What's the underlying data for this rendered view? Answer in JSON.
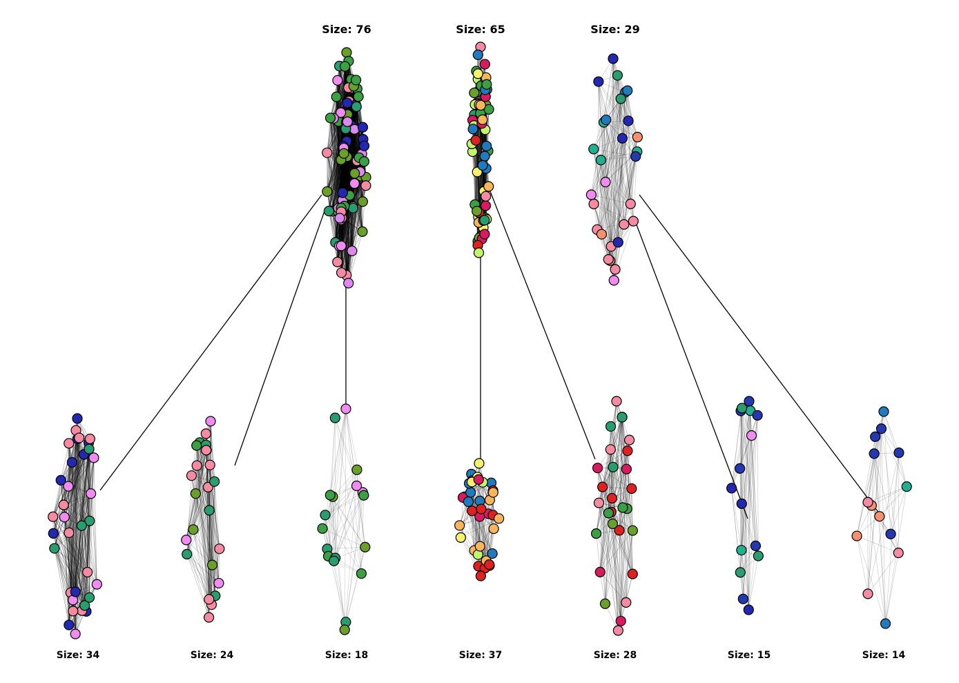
{
  "top_clusters": [
    {
      "id": "t1",
      "size_label": "Size: 76",
      "palette": [
        "#f08cf0",
        "#f58aa3",
        "#3aa043",
        "#2a9d70",
        "#6aa02a",
        "#dd88ee",
        "#2427b0"
      ]
    },
    {
      "id": "t2",
      "size_label": "Size: 65",
      "palette": [
        "#dd2222",
        "#1f7bbd",
        "#f6f06a",
        "#c2f56a",
        "#f9b55c",
        "#3aa043",
        "#d81b60",
        "#2a9d70",
        "#6aa02a",
        "#f58aa3"
      ]
    },
    {
      "id": "t3",
      "size_label": "Size: 29",
      "palette": [
        "#2438b0",
        "#1f7bbd",
        "#f58aa3",
        "#f08cf0",
        "#20b090",
        "#2a9d70",
        "#f59070",
        "#2427b0"
      ]
    }
  ],
  "bottom_clusters": [
    {
      "id": "b1",
      "size_label": "Size: 34",
      "palette": [
        "#f08cf0",
        "#f58aa3",
        "#2a9d70",
        "#2427b0"
      ]
    },
    {
      "id": "b2",
      "size_label": "Size: 24",
      "palette": [
        "#f08cf0",
        "#f58aa3",
        "#3aa043",
        "#2a9d70",
        "#6aa02a"
      ]
    },
    {
      "id": "b3",
      "size_label": "Size: 18",
      "palette": [
        "#3aa043",
        "#2a9d70",
        "#6aa02a",
        "#f08cf0"
      ]
    },
    {
      "id": "b4",
      "size_label": "Size: 37",
      "palette": [
        "#f6f06a",
        "#f9b55c",
        "#dd2222",
        "#1f7bbd",
        "#c2f56a",
        "#d81b60"
      ]
    },
    {
      "id": "b5",
      "size_label": "Size: 28",
      "palette": [
        "#3aa043",
        "#dd2222",
        "#6aa02a",
        "#d81b60",
        "#2a9d70",
        "#f58aa3"
      ]
    },
    {
      "id": "b6",
      "size_label": "Size: 15",
      "palette": [
        "#2427b0",
        "#2438b0",
        "#f58aa3",
        "#f08cf0",
        "#2a9d70",
        "#20b090"
      ]
    },
    {
      "id": "b7",
      "size_label": "Size: 14",
      "palette": [
        "#2438b0",
        "#1f7bbd",
        "#20b090",
        "#f58aa3",
        "#f59070"
      ]
    }
  ],
  "links": [
    {
      "from": "t1",
      "to": "b1"
    },
    {
      "from": "t1",
      "to": "b2"
    },
    {
      "from": "t1",
      "to": "b3"
    },
    {
      "from": "t2",
      "to": "b4"
    },
    {
      "from": "t2",
      "to": "b5"
    },
    {
      "from": "t3",
      "to": "b6"
    },
    {
      "from": "t3",
      "to": "b7"
    }
  ]
}
